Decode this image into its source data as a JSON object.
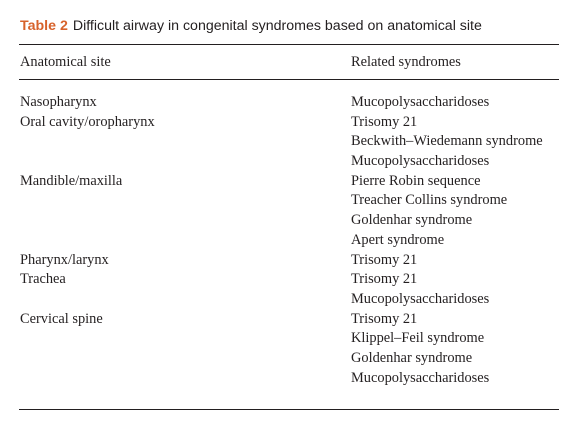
{
  "table": {
    "label": "Table 2",
    "title": "Difficult airway in congenital syndromes based on anatomical site",
    "columns": [
      "Anatomical site",
      "Related syndromes"
    ],
    "rows": [
      {
        "site": "Nasopharynx",
        "syndrome": "Mucopolysaccharidoses"
      },
      {
        "site": "Oral cavity/oropharynx",
        "syndrome": "Trisomy 21"
      },
      {
        "site": "",
        "syndrome": "Beckwith–Wiedemann syndrome"
      },
      {
        "site": "",
        "syndrome": "Mucopolysaccharidoses"
      },
      {
        "site": "Mandible/maxilla",
        "syndrome": "Pierre Robin sequence"
      },
      {
        "site": "",
        "syndrome": "Treacher Collins syndrome"
      },
      {
        "site": "",
        "syndrome": "Goldenhar syndrome"
      },
      {
        "site": "",
        "syndrome": "Apert syndrome"
      },
      {
        "site": "Pharynx/larynx",
        "syndrome": "Trisomy 21"
      },
      {
        "site": "Trachea",
        "syndrome": "Trisomy 21"
      },
      {
        "site": "",
        "syndrome": "Mucopolysaccharidoses"
      },
      {
        "site": "Cervical spine",
        "syndrome": "Trisomy 21"
      },
      {
        "site": "",
        "syndrome": "Klippel–Feil syndrome"
      },
      {
        "site": "",
        "syndrome": "Goldenhar syndrome"
      },
      {
        "site": "",
        "syndrome": "Mucopolysaccharidoses"
      }
    ]
  },
  "colors": {
    "label": "#d7622b",
    "text": "#231f20"
  }
}
